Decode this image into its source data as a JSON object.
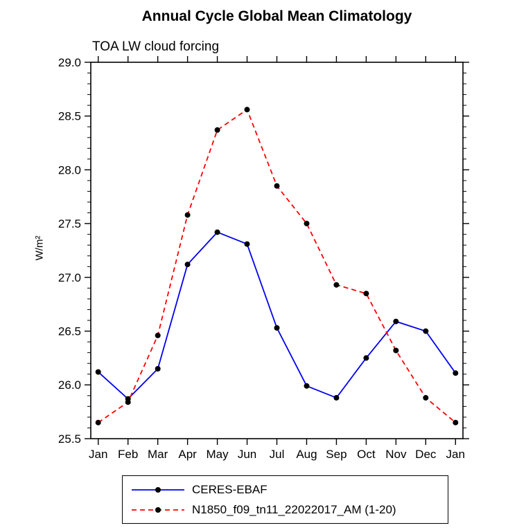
{
  "chart_data": {
    "type": "line",
    "title": "Annual Cycle Global Mean Climatology",
    "subtitle": "TOA LW cloud forcing",
    "ylabel": "W/m²",
    "xlabel": "",
    "categories": [
      "Jan",
      "Feb",
      "Mar",
      "Apr",
      "May",
      "Jun",
      "Jul",
      "Aug",
      "Sep",
      "Oct",
      "Nov",
      "Dec",
      "Jan"
    ],
    "series": [
      {
        "name": "CERES-EBAF",
        "color": "#0000ee",
        "style": "solid",
        "marker": "circle",
        "marker_color": "#000000",
        "values": [
          26.12,
          25.87,
          26.15,
          27.12,
          27.42,
          27.31,
          26.53,
          25.99,
          25.88,
          26.25,
          26.59,
          26.5,
          26.11
        ]
      },
      {
        "name": "N1850_f09_tn11_22022017_AM (1-20)",
        "color": "#ff0000",
        "style": "dashed",
        "marker": "circle",
        "marker_color": "#000000",
        "values": [
          25.65,
          25.84,
          26.46,
          27.58,
          28.37,
          28.56,
          27.85,
          27.5,
          26.93,
          26.85,
          26.32,
          25.88,
          25.65
        ]
      }
    ],
    "ylim": [
      25.5,
      29.0
    ],
    "yticks": [
      25.5,
      26.0,
      26.5,
      27.0,
      27.5,
      28.0,
      28.5,
      29.0
    ],
    "ytick_minor_step": 0.1,
    "grid": false,
    "legend_position": "bottom",
    "frame_color": "#000000"
  }
}
